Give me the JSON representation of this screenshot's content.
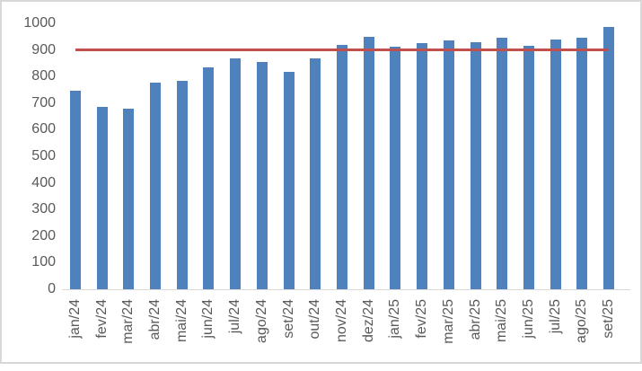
{
  "chart_data": {
    "type": "bar",
    "title": "",
    "xlabel": "",
    "ylabel": "",
    "categories": [
      "jan/24",
      "fev/24",
      "mar/24",
      "abr/24",
      "mai/24",
      "jun/24",
      "jul/24",
      "ago/24",
      "set/24",
      "out/24",
      "nov/24",
      "dez/24",
      "jan/25",
      "fev/25",
      "mar/25",
      "abr/25",
      "mai/25",
      "jun/25",
      "jul/25",
      "ago/25",
      "set/25"
    ],
    "values": [
      745,
      685,
      680,
      778,
      785,
      835,
      868,
      855,
      818,
      868,
      920,
      950,
      913,
      925,
      935,
      930,
      945,
      915,
      940,
      945,
      985
    ],
    "reference_line": {
      "value": 900,
      "color": "#c0504d"
    },
    "yaxis": {
      "min": 0,
      "max": 1000,
      "tick_step": 100,
      "ticks": [
        0,
        100,
        200,
        300,
        400,
        500,
        600,
        700,
        800,
        900,
        1000
      ]
    },
    "grid": false,
    "legend": false,
    "bar_color": "#4f81bd",
    "axis_text_color": "#595959",
    "axis_line_color": "#d9d9d9"
  }
}
